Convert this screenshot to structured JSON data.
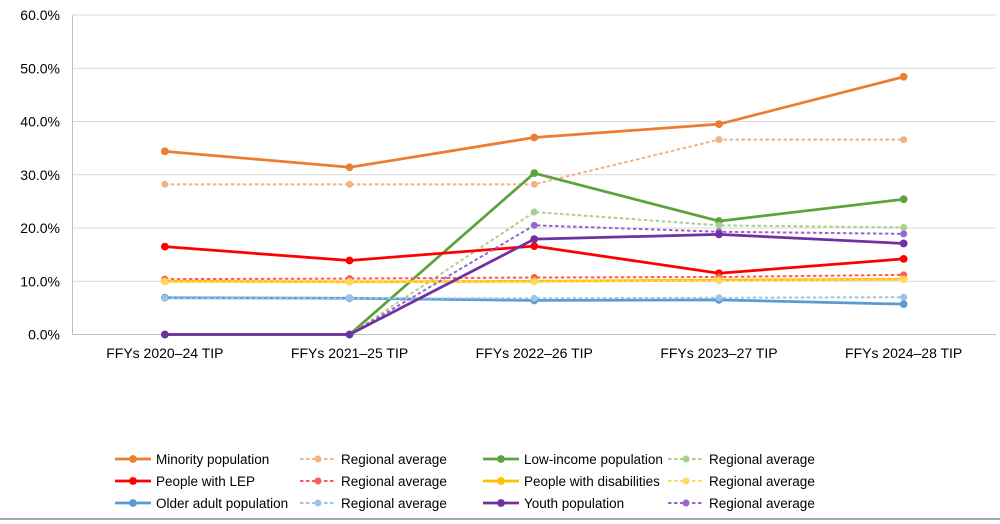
{
  "chart_data": {
    "type": "line",
    "title": "",
    "xlabel": "",
    "ylabel": "",
    "categories": [
      "FFYs 2020–24 TIP",
      "FFYs 2021–25 TIP",
      "FFYs 2022–26 TIP",
      "FFYs 2023–27 TIP",
      "FFYs 2024–28 TIP"
    ],
    "y_axis": {
      "min": 0,
      "max": 60,
      "step": 10,
      "tick_labels": [
        "0.0%",
        "10.0%",
        "20.0%",
        "30.0%",
        "40.0%",
        "50.0%",
        "60.0%"
      ]
    },
    "grid": true,
    "legend_position": "bottom",
    "series": [
      {
        "name": "minority-population",
        "legend_label": "Minority population",
        "color": "#ED7D31",
        "style": "solid",
        "values": [
          34.4,
          31.4,
          37.0,
          39.5,
          48.4
        ]
      },
      {
        "name": "minority-regional-average",
        "legend_label": "Regional average",
        "color": "#F4B183",
        "style": "dashed",
        "values": [
          28.2,
          28.2,
          28.2,
          36.6,
          36.6
        ]
      },
      {
        "name": "low-income-population",
        "legend_label": "Low-income population",
        "color": "#5CA33C",
        "style": "solid",
        "values": [
          0.0,
          0.0,
          30.3,
          21.3,
          25.4
        ]
      },
      {
        "name": "low-income-regional-average",
        "legend_label": "Regional average",
        "color": "#A9D18E",
        "style": "dashed",
        "values": [
          0.0,
          0.0,
          23.0,
          20.5,
          20.1
        ]
      },
      {
        "name": "people-with-lep",
        "legend_label": "People with LEP",
        "color": "#FF0000",
        "style": "solid",
        "values": [
          16.5,
          13.9,
          16.6,
          11.5,
          14.2
        ]
      },
      {
        "name": "lep-regional-average",
        "legend_label": "Regional average",
        "color": "#FF5A5A",
        "style": "dashed",
        "values": [
          10.4,
          10.5,
          10.7,
          10.8,
          11.2
        ]
      },
      {
        "name": "people-with-disabilities",
        "legend_label": "People with disabilities",
        "color": "#FFC000",
        "style": "solid",
        "values": [
          10.0,
          9.9,
          10.0,
          10.2,
          10.4
        ]
      },
      {
        "name": "disabilities-regional-average",
        "legend_label": "Regional average",
        "color": "#FFD966",
        "style": "dashed",
        "values": [
          9.9,
          9.9,
          9.9,
          10.1,
          10.3
        ]
      },
      {
        "name": "older-adult-population",
        "legend_label": "Older adult population",
        "color": "#5B9BD5",
        "style": "solid",
        "values": [
          6.9,
          6.8,
          6.4,
          6.5,
          5.7
        ]
      },
      {
        "name": "older-adult-regional-average",
        "legend_label": "Regional average",
        "color": "#9DC3E6",
        "style": "dashed",
        "values": [
          6.8,
          6.8,
          6.8,
          6.9,
          7.0
        ]
      },
      {
        "name": "youth-population",
        "legend_label": "Youth population",
        "color": "#7030A0",
        "style": "solid",
        "values": [
          0.0,
          0.0,
          17.9,
          18.8,
          17.1
        ]
      },
      {
        "name": "youth-regional-average",
        "legend_label": "Regional average",
        "color": "#9966CC",
        "style": "dashed",
        "values": [
          0.0,
          0.0,
          20.5,
          19.3,
          18.9
        ]
      }
    ]
  },
  "colors": {
    "gridline": "#D9D9D9",
    "axis": "#BFBFBF",
    "divider": "#A6A6A6",
    "background": "#FFFFFF",
    "text": "#000000"
  }
}
